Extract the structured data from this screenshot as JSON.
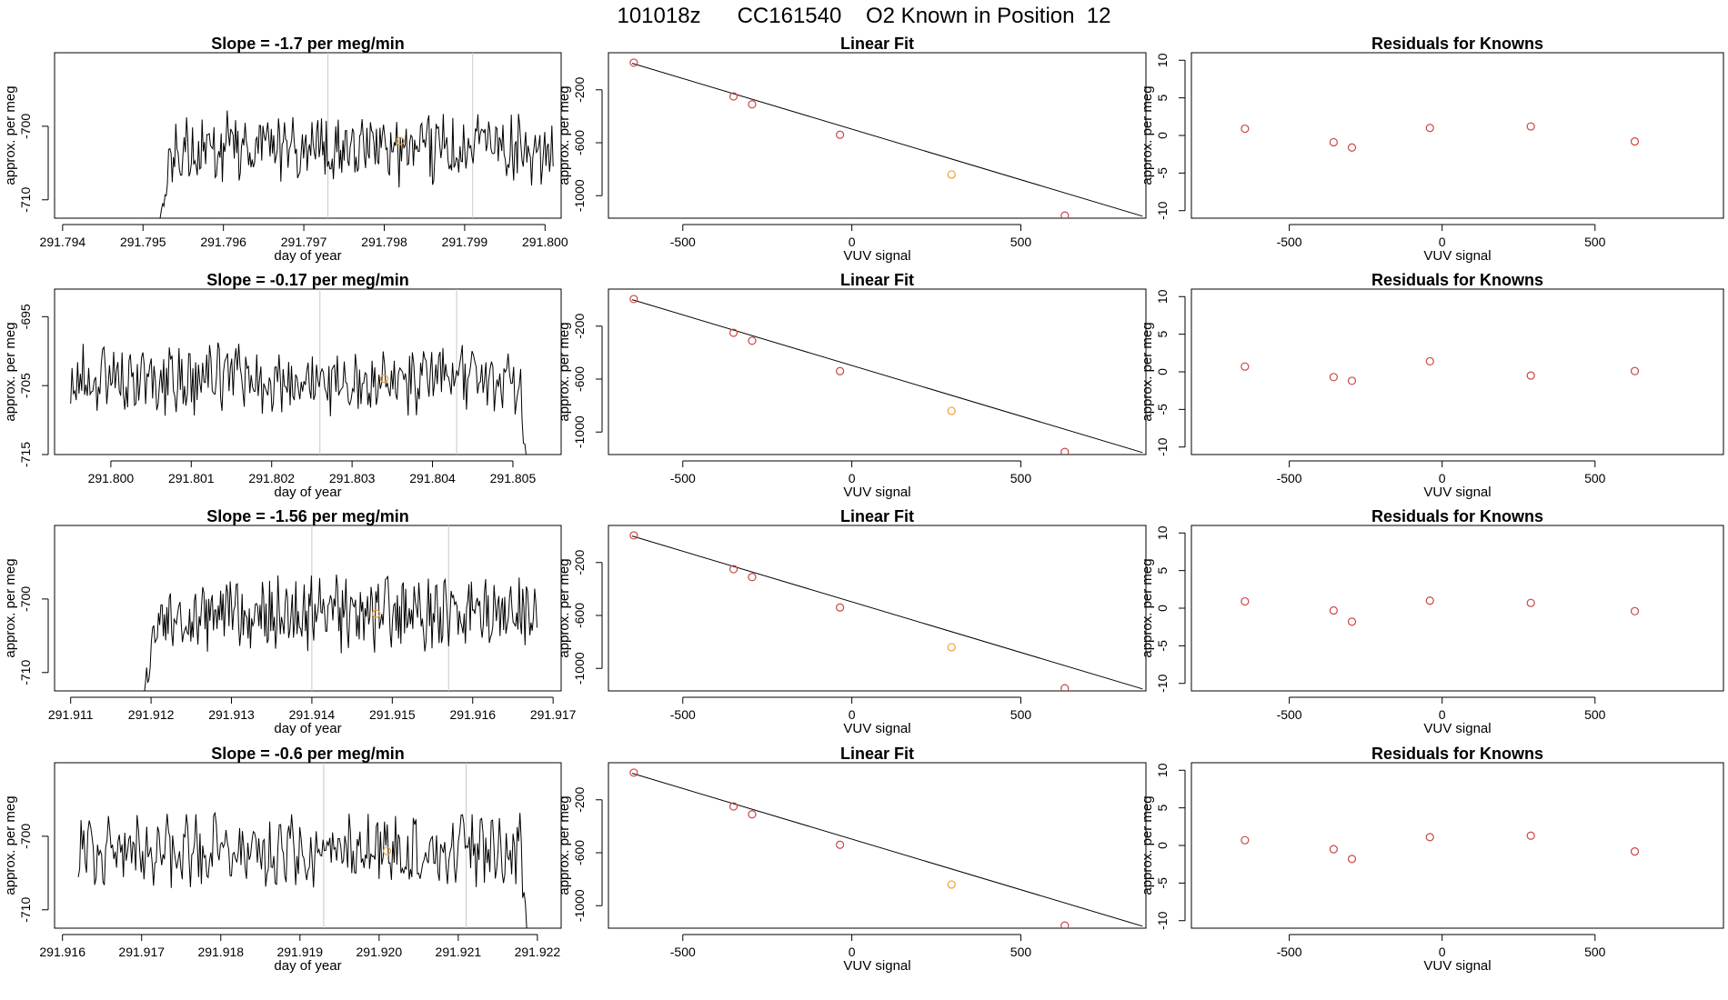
{
  "title": "101018z      CC161540    O2 Known in Position  12",
  "colors": {
    "line": "#000000",
    "unknown_point": "#f0a030",
    "known_point": "#cc4444",
    "vline": "#c8c8c8"
  },
  "chart_data": [
    {
      "row": 1,
      "time_series": {
        "type": "line",
        "title": "Slope =  -1.7  per meg/min",
        "xlabel": "day of year",
        "ylabel": "approx. per meg",
        "xlim": [
          291.7939,
          291.8002
        ],
        "ylim": [
          -712.5,
          -690
        ],
        "xticks": [
          291.794,
          291.795,
          291.796,
          291.797,
          291.798,
          291.799,
          291.8
        ],
        "xtick_labels": [
          "291.794",
          "291.795",
          "291.796",
          "291.797",
          "291.798",
          "291.799",
          "291.800"
        ],
        "yticks": [
          -700,
          -710
        ],
        "ytick_labels": [
          "-700",
          "-710"
        ],
        "x_start": 291.7952,
        "x_end": 291.8001,
        "base": -703,
        "start_drop": {
          "to": -716,
          "duration": 0.0002
        },
        "end_drop": null,
        "vlines": [
          291.7973,
          291.7991
        ],
        "marker": {
          "x": 291.7982,
          "y": -702
        }
      },
      "linear_fit": {
        "type": "scatter",
        "title": "Linear Fit",
        "xlabel": "VUV signal",
        "ylabel": "approx. per meg",
        "xlim": [
          -720,
          870
        ],
        "ylim": [
          -1170,
          80
        ],
        "xticks": [
          -500,
          0,
          500
        ],
        "xtick_labels": [
          "-500",
          "0",
          "500"
        ],
        "yticks": [
          -200,
          -600,
          -1000
        ],
        "ytick_labels": [
          "-200",
          "-600",
          "-1000"
        ],
        "line": [
          [
            -650,
            0
          ],
          [
            860,
            -1155
          ]
        ],
        "points": [
          {
            "x": -645,
            "y": 5,
            "kind": "known"
          },
          {
            "x": -350,
            "y": -250,
            "kind": "known"
          },
          {
            "x": -295,
            "y": -310,
            "kind": "known"
          },
          {
            "x": -35,
            "y": -540,
            "kind": "known"
          },
          {
            "x": 295,
            "y": -840,
            "kind": "unknown"
          },
          {
            "x": 630,
            "y": -1150,
            "kind": "known"
          }
        ]
      },
      "residuals": {
        "type": "scatter",
        "title": "Residuals for Knowns",
        "xlabel": "VUV signal",
        "ylabel": "approx. per meg",
        "xlim": [
          -820,
          920
        ],
        "ylim": [
          -11,
          11
        ],
        "xticks": [
          -500,
          0,
          500
        ],
        "xtick_labels": [
          "-500",
          "0",
          "500"
        ],
        "yticks": [
          10,
          5,
          0,
          -5,
          -10
        ],
        "ytick_labels": [
          "10",
          "5",
          "0",
          "-5",
          "-10"
        ],
        "points": [
          {
            "x": -645,
            "y": 0.9
          },
          {
            "x": -355,
            "y": -0.9
          },
          {
            "x": -295,
            "y": -1.6
          },
          {
            "x": -40,
            "y": 1.0
          },
          {
            "x": 290,
            "y": 1.2
          },
          {
            "x": 630,
            "y": -0.8
          }
        ]
      }
    },
    {
      "row": 2,
      "time_series": {
        "type": "line",
        "title": "Slope =  -0.17  per meg/min",
        "xlabel": "day of year",
        "ylabel": "approx. per meg",
        "xlim": [
          291.7993,
          291.8056
        ],
        "ylim": [
          -715,
          -691
        ],
        "xticks": [
          291.8,
          291.801,
          291.802,
          291.803,
          291.804,
          291.805
        ],
        "xtick_labels": [
          "291.800",
          "291.801",
          "291.802",
          "291.803",
          "291.804",
          "291.805"
        ],
        "yticks": [
          -695,
          -705,
          -715
        ],
        "ytick_labels": [
          "-695",
          "-705",
          "-715"
        ],
        "x_start": 291.7995,
        "x_end": 291.8052,
        "base": -704,
        "start_drop": null,
        "end_drop": {
          "to": -720,
          "duration": 0.00012
        },
        "vlines": [
          291.8026,
          291.8043
        ],
        "marker": {
          "x": 291.8034,
          "y": -704
        }
      },
      "linear_fit": {
        "type": "scatter",
        "title": "Linear Fit",
        "xlabel": "VUV signal",
        "ylabel": "approx. per meg",
        "xlim": [
          -720,
          870
        ],
        "ylim": [
          -1170,
          80
        ],
        "xticks": [
          -500,
          0,
          500
        ],
        "xtick_labels": [
          "-500",
          "0",
          "500"
        ],
        "yticks": [
          -200,
          -600,
          -1000
        ],
        "ytick_labels": [
          "-200",
          "-600",
          "-1000"
        ],
        "line": [
          [
            -650,
            0
          ],
          [
            860,
            -1155
          ]
        ],
        "points": [
          {
            "x": -645,
            "y": 5,
            "kind": "known"
          },
          {
            "x": -350,
            "y": -250,
            "kind": "known"
          },
          {
            "x": -295,
            "y": -310,
            "kind": "known"
          },
          {
            "x": -35,
            "y": -540,
            "kind": "known"
          },
          {
            "x": 295,
            "y": -840,
            "kind": "unknown"
          },
          {
            "x": 630,
            "y": -1150,
            "kind": "known"
          }
        ]
      },
      "residuals": {
        "type": "scatter",
        "title": "Residuals for Knowns",
        "xlabel": "VUV signal",
        "ylabel": "approx. per meg",
        "xlim": [
          -820,
          920
        ],
        "ylim": [
          -11,
          11
        ],
        "xticks": [
          -500,
          0,
          500
        ],
        "xtick_labels": [
          "-500",
          "0",
          "500"
        ],
        "yticks": [
          10,
          5,
          0,
          -5,
          -10
        ],
        "ytick_labels": [
          "10",
          "5",
          "0",
          "-5",
          "-10"
        ],
        "points": [
          {
            "x": -645,
            "y": 0.7
          },
          {
            "x": -355,
            "y": -0.7
          },
          {
            "x": -295,
            "y": -1.2
          },
          {
            "x": -40,
            "y": 1.4
          },
          {
            "x": 290,
            "y": -0.5
          },
          {
            "x": 630,
            "y": 0.1
          }
        ]
      }
    },
    {
      "row": 3,
      "time_series": {
        "type": "line",
        "title": "Slope =  -1.56  per meg/min",
        "xlabel": "day of year",
        "ylabel": "approx. per meg",
        "xlim": [
          291.9108,
          291.9171
        ],
        "ylim": [
          -712.5,
          -690
        ],
        "xticks": [
          291.911,
          291.912,
          291.913,
          291.914,
          291.915,
          291.916,
          291.917
        ],
        "xtick_labels": [
          "291.911",
          "291.912",
          "291.913",
          "291.914",
          "291.915",
          "291.916",
          "291.917"
        ],
        "yticks": [
          -700,
          -710
        ],
        "ytick_labels": [
          "-700",
          "-710"
        ],
        "x_start": 291.9119,
        "x_end": 291.9168,
        "base": -702,
        "start_drop": {
          "to": -716,
          "duration": 0.0002
        },
        "end_drop": null,
        "vlines": [
          291.914,
          291.9157
        ],
        "marker": {
          "x": 291.9148,
          "y": -702
        }
      },
      "linear_fit": {
        "type": "scatter",
        "title": "Linear Fit",
        "xlabel": "VUV signal",
        "ylabel": "approx. per meg",
        "xlim": [
          -720,
          870
        ],
        "ylim": [
          -1170,
          80
        ],
        "xticks": [
          -500,
          0,
          500
        ],
        "xtick_labels": [
          "-500",
          "0",
          "500"
        ],
        "yticks": [
          -200,
          -600,
          -1000
        ],
        "ytick_labels": [
          "-200",
          "-600",
          "-1000"
        ],
        "line": [
          [
            -650,
            0
          ],
          [
            860,
            -1155
          ]
        ],
        "points": [
          {
            "x": -645,
            "y": 5,
            "kind": "known"
          },
          {
            "x": -350,
            "y": -250,
            "kind": "known"
          },
          {
            "x": -295,
            "y": -310,
            "kind": "known"
          },
          {
            "x": -35,
            "y": -540,
            "kind": "known"
          },
          {
            "x": 295,
            "y": -840,
            "kind": "unknown"
          },
          {
            "x": 630,
            "y": -1150,
            "kind": "known"
          }
        ]
      },
      "residuals": {
        "type": "scatter",
        "title": "Residuals for Knowns",
        "xlabel": "VUV signal",
        "ylabel": "approx. per meg",
        "xlim": [
          -820,
          920
        ],
        "ylim": [
          -11,
          11
        ],
        "xticks": [
          -500,
          0,
          500
        ],
        "xtick_labels": [
          "-500",
          "0",
          "500"
        ],
        "yticks": [
          10,
          5,
          0,
          -5,
          -10
        ],
        "ytick_labels": [
          "10",
          "5",
          "0",
          "-5",
          "-10"
        ],
        "points": [
          {
            "x": -645,
            "y": 0.9
          },
          {
            "x": -355,
            "y": -0.3
          },
          {
            "x": -295,
            "y": -1.8
          },
          {
            "x": -40,
            "y": 1.0
          },
          {
            "x": 290,
            "y": 0.7
          },
          {
            "x": 630,
            "y": -0.4
          }
        ]
      }
    },
    {
      "row": 4,
      "time_series": {
        "type": "line",
        "title": "Slope =  -0.6  per meg/min",
        "xlabel": "day of year",
        "ylabel": "approx. per meg",
        "xlim": [
          291.9159,
          291.9223
        ],
        "ylim": [
          -712.5,
          -690
        ],
        "xticks": [
          291.916,
          291.917,
          291.918,
          291.919,
          291.92,
          291.921,
          291.922
        ],
        "xtick_labels": [
          "291.916",
          "291.917",
          "291.918",
          "291.919",
          "291.920",
          "291.921",
          "291.922"
        ],
        "yticks": [
          -700,
          -710
        ],
        "ytick_labels": [
          "-700",
          "-710"
        ],
        "x_start": 291.9162,
        "x_end": 291.9219,
        "base": -702,
        "start_drop": null,
        "end_drop": {
          "to": -716,
          "duration": 0.00012
        },
        "vlines": [
          291.9193,
          291.9211
        ],
        "marker": {
          "x": 291.9201,
          "y": -702
        }
      },
      "linear_fit": {
        "type": "scatter",
        "title": "Linear Fit",
        "xlabel": "VUV signal",
        "ylabel": "approx. per meg",
        "xlim": [
          -720,
          870
        ],
        "ylim": [
          -1170,
          80
        ],
        "xticks": [
          -500,
          0,
          500
        ],
        "xtick_labels": [
          "-500",
          "0",
          "500"
        ],
        "yticks": [
          -200,
          -600,
          -1000
        ],
        "ytick_labels": [
          "-200",
          "-600",
          "-1000"
        ],
        "line": [
          [
            -650,
            0
          ],
          [
            860,
            -1155
          ]
        ],
        "points": [
          {
            "x": -645,
            "y": 5,
            "kind": "known"
          },
          {
            "x": -350,
            "y": -250,
            "kind": "known"
          },
          {
            "x": -295,
            "y": -310,
            "kind": "known"
          },
          {
            "x": -35,
            "y": -540,
            "kind": "known"
          },
          {
            "x": 295,
            "y": -840,
            "kind": "unknown"
          },
          {
            "x": 630,
            "y": -1150,
            "kind": "known"
          }
        ]
      },
      "residuals": {
        "type": "scatter",
        "title": "Residuals for Knowns",
        "xlabel": "VUV signal",
        "ylabel": "approx. per meg",
        "xlim": [
          -820,
          920
        ],
        "ylim": [
          -11,
          11
        ],
        "xticks": [
          -500,
          0,
          500
        ],
        "xtick_labels": [
          "-500",
          "0",
          "500"
        ],
        "yticks": [
          10,
          5,
          0,
          -5,
          -10
        ],
        "ytick_labels": [
          "10",
          "5",
          "0",
          "-5",
          "-10"
        ],
        "points": [
          {
            "x": -645,
            "y": 0.7
          },
          {
            "x": -355,
            "y": -0.5
          },
          {
            "x": -295,
            "y": -1.8
          },
          {
            "x": -40,
            "y": 1.1
          },
          {
            "x": 290,
            "y": 1.3
          },
          {
            "x": 630,
            "y": -0.8
          }
        ]
      }
    }
  ]
}
